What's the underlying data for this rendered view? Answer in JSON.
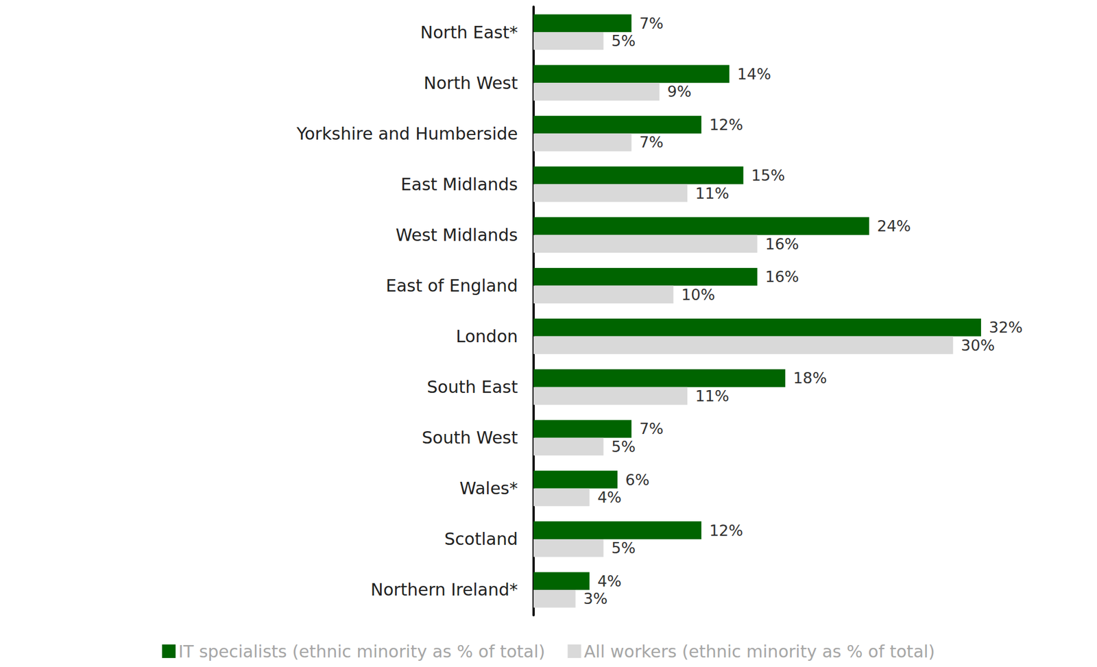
{
  "chart_data": {
    "type": "bar",
    "orientation": "horizontal",
    "categories": [
      "North East*",
      "North West",
      "Yorkshire and Humberside",
      "East Midlands",
      "West Midlands",
      "East of England",
      "London",
      "South East",
      "South West",
      "Wales*",
      "Scotland",
      "Northern Ireland*"
    ],
    "series": [
      {
        "name": "IT specialists (ethnic minority as % of total)",
        "color": "#006400",
        "values": [
          7,
          14,
          12,
          15,
          24,
          16,
          32,
          18,
          7,
          6,
          12,
          4
        ],
        "value_labels": [
          "7%",
          "14%",
          "12%",
          "15%",
          "24%",
          "16%",
          "32%",
          "18%",
          "7%",
          "6%",
          "12%",
          "4%"
        ]
      },
      {
        "name": "All workers (ethnic minority as % of total)",
        "color": "#d9d9d9",
        "values": [
          5,
          9,
          7,
          11,
          16,
          10,
          30,
          11,
          5,
          4,
          5,
          3
        ],
        "value_labels": [
          "5%",
          "9%",
          "7%",
          "11%",
          "16%",
          "10%",
          "30%",
          "11%",
          "5%",
          "4%",
          "5%",
          "3%"
        ]
      }
    ],
    "xlim": [
      0,
      32
    ],
    "data_labels": true,
    "tick_labels": "y",
    "grid": false,
    "legend": "bottom"
  }
}
